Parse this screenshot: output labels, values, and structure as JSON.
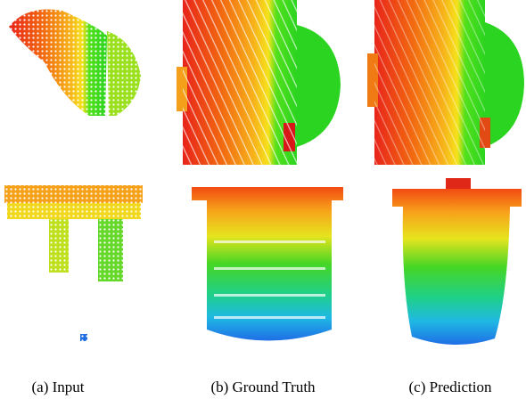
{
  "panels": [
    {
      "caption": "(a) Input"
    },
    {
      "caption": "(b) Ground Truth"
    },
    {
      "caption": "(c) Prediction"
    }
  ]
}
